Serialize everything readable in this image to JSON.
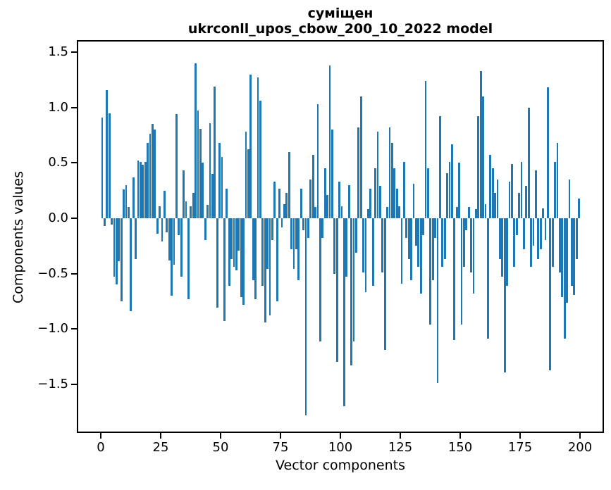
{
  "title": {
    "line1": "суміщен",
    "line2": "ukrconll_upos_cbow_200_10_2022 model"
  },
  "axes": {
    "xlabel": "Vector components",
    "ylabel": "Components values",
    "x_ticks": [
      {
        "label": "0",
        "value": 0
      },
      {
        "label": "25",
        "value": 25
      },
      {
        "label": "50",
        "value": 50
      },
      {
        "label": "75",
        "value": 75
      },
      {
        "label": "100",
        "value": 100
      },
      {
        "label": "125",
        "value": 125
      },
      {
        "label": "150",
        "value": 150
      },
      {
        "label": "175",
        "value": 175
      },
      {
        "label": "200",
        "value": 200
      }
    ],
    "y_ticks": [
      {
        "label": "1.5",
        "value": 1.5
      },
      {
        "label": "1.0",
        "value": 1.0
      },
      {
        "label": "0.5",
        "value": 0.5
      },
      {
        "label": "0.0",
        "value": 0.0
      },
      {
        "label": "−0.5",
        "value": -0.5
      },
      {
        "label": "−1.0",
        "value": -1.0
      },
      {
        "label": "−1.5",
        "value": -1.5
      }
    ]
  },
  "chart_data": {
    "type": "bar",
    "title": "суміщен ukrconll_upos_cbow_200_10_2022 model",
    "xlabel": "Vector components",
    "ylabel": "Components values",
    "bar_color": "#1f77b4",
    "grid": false,
    "legend": null,
    "xlim": [
      -11,
      210
    ],
    "ylim": [
      -1.94,
      1.61
    ],
    "x_description": "vector component index 0..199",
    "values": [
      0.91,
      -0.07,
      1.16,
      0.95,
      -0.06,
      -0.53,
      -0.6,
      -0.39,
      -0.75,
      0.26,
      0.3,
      0.1,
      -0.84,
      0.37,
      -0.37,
      0.52,
      0.51,
      0.48,
      0.51,
      0.68,
      0.76,
      0.85,
      0.8,
      -0.14,
      0.11,
      -0.21,
      0.25,
      -0.13,
      -0.38,
      -0.7,
      -0.42,
      0.94,
      -0.15,
      -0.53,
      0.43,
      0.15,
      -0.73,
      0.11,
      0.23,
      1.4,
      0.97,
      0.81,
      0.5,
      -0.2,
      0.12,
      0.86,
      0.4,
      1.19,
      -0.81,
      0.68,
      0.55,
      -0.93,
      0.27,
      -0.61,
      -0.37,
      -0.44,
      -0.47,
      -0.29,
      -0.71,
      -0.78,
      0.78,
      0.62,
      1.3,
      -0.56,
      -0.73,
      1.27,
      1.06,
      -0.61,
      -0.94,
      -0.46,
      -0.88,
      -0.2,
      0.33,
      -0.75,
      0.27,
      -0.08,
      0.13,
      0.23,
      0.6,
      -0.28,
      -0.46,
      -0.28,
      -0.56,
      0.27,
      -0.11,
      -1.78,
      -0.18,
      0.35,
      0.57,
      0.1,
      1.03,
      -1.11,
      -0.18,
      0.45,
      0.21,
      1.38,
      0.8,
      -0.5,
      -1.3,
      0.33,
      0.11,
      -1.7,
      -0.53,
      0.3,
      -1.33,
      -1.11,
      -0.31,
      0.82,
      1.1,
      -0.49,
      -0.67,
      0.08,
      0.27,
      -0.61,
      0.45,
      0.78,
      0.29,
      -0.49,
      -1.19,
      0.1,
      0.82,
      0.68,
      0.45,
      0.27,
      0.11,
      -0.59,
      0.51,
      -0.18,
      -0.37,
      -0.56,
      0.31,
      -0.25,
      -0.44,
      -0.68,
      -0.15,
      1.24,
      0.45,
      -0.96,
      -0.56,
      -0.18,
      -1.49,
      0.92,
      -0.44,
      -0.37,
      0.41,
      0.51,
      0.67,
      -1.1,
      0.1,
      0.5,
      -0.96,
      -0.44,
      -0.11,
      0.1,
      -0.49,
      -0.68,
      0.08,
      0.92,
      1.33,
      1.1,
      0.13,
      -1.09,
      0.57,
      0.45,
      0.23,
      0.35,
      -0.37,
      -0.53,
      -1.39,
      -0.61,
      0.33,
      0.49,
      -0.44,
      -0.15,
      0.23,
      0.51,
      -0.28,
      0.29,
      1.0,
      -0.44,
      -0.25,
      0.43,
      -0.37,
      -0.28,
      0.09,
      -0.2,
      1.18,
      -1.37,
      -0.44,
      0.51,
      0.68,
      -0.49,
      -0.71,
      -1.09,
      -0.76,
      0.35,
      -0.61,
      -0.69,
      -0.37,
      0.18
    ]
  }
}
